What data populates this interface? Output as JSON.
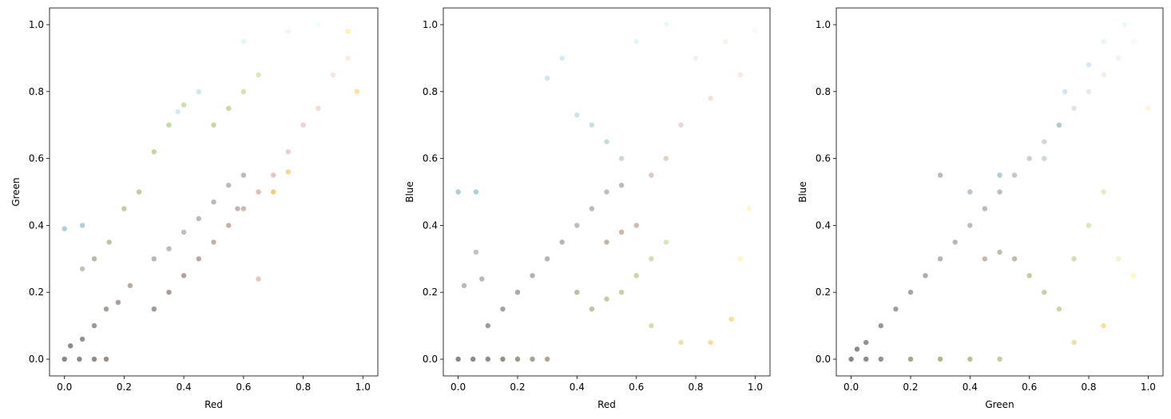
{
  "chart_data": [
    {
      "type": "scatter",
      "xlabel": "Red",
      "ylabel": "Green",
      "xlim": [
        -0.05,
        1.05
      ],
      "ylim": [
        -0.05,
        1.05
      ],
      "xticks": [
        "0.0",
        "0.2",
        "0.4",
        "0.6",
        "0.8",
        "1.0"
      ],
      "yticks": [
        "0.0",
        "0.2",
        "0.4",
        "0.6",
        "0.8",
        "1.0"
      ],
      "grid": false,
      "points": [
        {
          "x": 0.0,
          "y": 0.0,
          "color": "#1a0f0a"
        },
        {
          "x": 0.05,
          "y": 0.0,
          "color": "#24140c"
        },
        {
          "x": 0.1,
          "y": 0.0,
          "color": "#2b1410"
        },
        {
          "x": 0.14,
          "y": 0.0,
          "color": "#3a1c14"
        },
        {
          "x": 0.02,
          "y": 0.04,
          "color": "#181818"
        },
        {
          "x": 0.06,
          "y": 0.06,
          "color": "#2a2a24"
        },
        {
          "x": 0.1,
          "y": 0.1,
          "color": "#3a3530"
        },
        {
          "x": 0.14,
          "y": 0.15,
          "color": "#4a4438"
        },
        {
          "x": 0.18,
          "y": 0.17,
          "color": "#55443c"
        },
        {
          "x": 0.22,
          "y": 0.22,
          "color": "#6a5a50"
        },
        {
          "x": 0.0,
          "y": 0.39,
          "color": "#5aa0b0"
        },
        {
          "x": 0.06,
          "y": 0.4,
          "color": "#5aa0b0"
        },
        {
          "x": 0.06,
          "y": 0.27,
          "color": "#7c8c70"
        },
        {
          "x": 0.1,
          "y": 0.3,
          "color": "#6a7a50"
        },
        {
          "x": 0.15,
          "y": 0.35,
          "color": "#7a9040"
        },
        {
          "x": 0.2,
          "y": 0.45,
          "color": "#80a040"
        },
        {
          "x": 0.25,
          "y": 0.5,
          "color": "#7ca038"
        },
        {
          "x": 0.3,
          "y": 0.62,
          "color": "#8ab040"
        },
        {
          "x": 0.35,
          "y": 0.7,
          "color": "#8ab848"
        },
        {
          "x": 0.4,
          "y": 0.76,
          "color": "#9ac060"
        },
        {
          "x": 0.45,
          "y": 0.8,
          "color": "#a0d0e0"
        },
        {
          "x": 0.38,
          "y": 0.74,
          "color": "#a8d8f0"
        },
        {
          "x": 0.5,
          "y": 0.7,
          "color": "#8ab040"
        },
        {
          "x": 0.55,
          "y": 0.75,
          "color": "#90b848"
        },
        {
          "x": 0.6,
          "y": 0.8,
          "color": "#a0c860"
        },
        {
          "x": 0.65,
          "y": 0.85,
          "color": "#b0d870"
        },
        {
          "x": 0.6,
          "y": 0.95,
          "color": "#c8eef8"
        },
        {
          "x": 0.75,
          "y": 0.98,
          "color": "#d8f4f8"
        },
        {
          "x": 0.85,
          "y": 1.0,
          "color": "#e0f8fa"
        },
        {
          "x": 0.95,
          "y": 0.98,
          "color": "#ffe860"
        },
        {
          "x": 0.95,
          "y": 0.9,
          "color": "#f8d8d0"
        },
        {
          "x": 0.98,
          "y": 0.8,
          "color": "#f8c838"
        },
        {
          "x": 0.9,
          "y": 0.85,
          "color": "#f0d0c8"
        },
        {
          "x": 0.85,
          "y": 0.75,
          "color": "#e8b8b0"
        },
        {
          "x": 0.8,
          "y": 0.7,
          "color": "#d8a8a0"
        },
        {
          "x": 0.75,
          "y": 0.62,
          "color": "#d0a098"
        },
        {
          "x": 0.7,
          "y": 0.55,
          "color": "#c89088"
        },
        {
          "x": 0.65,
          "y": 0.5,
          "color": "#b88078"
        },
        {
          "x": 0.6,
          "y": 0.45,
          "color": "#a87068"
        },
        {
          "x": 0.55,
          "y": 0.4,
          "color": "#985e58"
        },
        {
          "x": 0.5,
          "y": 0.35,
          "color": "#886050"
        },
        {
          "x": 0.45,
          "y": 0.3,
          "color": "#7a5048"
        },
        {
          "x": 0.4,
          "y": 0.25,
          "color": "#6a4038"
        },
        {
          "x": 0.35,
          "y": 0.2,
          "color": "#5a3830"
        },
        {
          "x": 0.3,
          "y": 0.15,
          "color": "#4a2e28"
        },
        {
          "x": 0.65,
          "y": 0.24,
          "color": "#d88880"
        },
        {
          "x": 0.7,
          "y": 0.5,
          "color": "#e0a000"
        },
        {
          "x": 0.75,
          "y": 0.56,
          "color": "#e8b020"
        },
        {
          "x": 0.3,
          "y": 0.3,
          "color": "#707068"
        },
        {
          "x": 0.35,
          "y": 0.33,
          "color": "#787870"
        },
        {
          "x": 0.4,
          "y": 0.38,
          "color": "#808078"
        },
        {
          "x": 0.45,
          "y": 0.42,
          "color": "#787868"
        },
        {
          "x": 0.5,
          "y": 0.47,
          "color": "#7a7868"
        },
        {
          "x": 0.55,
          "y": 0.52,
          "color": "#7a7a6a"
        },
        {
          "x": 0.6,
          "y": 0.55,
          "color": "#787a6a"
        },
        {
          "x": 0.58,
          "y": 0.45,
          "color": "#8a6860"
        }
      ]
    },
    {
      "type": "scatter",
      "xlabel": "Red",
      "ylabel": "Blue",
      "xlim": [
        -0.05,
        1.05
      ],
      "ylim": [
        -0.05,
        1.05
      ],
      "xticks": [
        "0.0",
        "0.2",
        "0.4",
        "0.6",
        "0.8",
        "1.0"
      ],
      "yticks": [
        "0.0",
        "0.2",
        "0.4",
        "0.6",
        "0.8",
        "1.0"
      ],
      "grid": false,
      "points": [
        {
          "x": 0.0,
          "y": 0.0,
          "color": "#101010"
        },
        {
          "x": 0.05,
          "y": 0.0,
          "color": "#181410"
        },
        {
          "x": 0.1,
          "y": 0.0,
          "color": "#221a10"
        },
        {
          "x": 0.15,
          "y": 0.0,
          "color": "#2a2410"
        },
        {
          "x": 0.2,
          "y": 0.0,
          "color": "#3a3410"
        },
        {
          "x": 0.25,
          "y": 0.0,
          "color": "#4a4414"
        },
        {
          "x": 0.3,
          "y": 0.0,
          "color": "#5a5418"
        },
        {
          "x": 0.0,
          "y": 0.5,
          "color": "#5aa0b0"
        },
        {
          "x": 0.06,
          "y": 0.5,
          "color": "#5aa0b0"
        },
        {
          "x": 0.06,
          "y": 0.32,
          "color": "#7a8a88"
        },
        {
          "x": 0.08,
          "y": 0.24,
          "color": "#6a7a70"
        },
        {
          "x": 0.02,
          "y": 0.22,
          "color": "#687880"
        },
        {
          "x": 0.1,
          "y": 0.1,
          "color": "#3a3838"
        },
        {
          "x": 0.15,
          "y": 0.15,
          "color": "#4a4440"
        },
        {
          "x": 0.2,
          "y": 0.2,
          "color": "#5a5048"
        },
        {
          "x": 0.25,
          "y": 0.25,
          "color": "#6a6058"
        },
        {
          "x": 0.3,
          "y": 0.3,
          "color": "#6a6860"
        },
        {
          "x": 0.35,
          "y": 0.35,
          "color": "#707068"
        },
        {
          "x": 0.4,
          "y": 0.4,
          "color": "#787870"
        },
        {
          "x": 0.45,
          "y": 0.45,
          "color": "#7a7a70"
        },
        {
          "x": 0.5,
          "y": 0.5,
          "color": "#808078"
        },
        {
          "x": 0.55,
          "y": 0.52,
          "color": "#787870"
        },
        {
          "x": 0.5,
          "y": 0.35,
          "color": "#8a6858"
        },
        {
          "x": 0.55,
          "y": 0.38,
          "color": "#907060"
        },
        {
          "x": 0.6,
          "y": 0.4,
          "color": "#987868"
        },
        {
          "x": 0.4,
          "y": 0.2,
          "color": "#708040"
        },
        {
          "x": 0.45,
          "y": 0.15,
          "color": "#789040"
        },
        {
          "x": 0.5,
          "y": 0.18,
          "color": "#80a040"
        },
        {
          "x": 0.55,
          "y": 0.2,
          "color": "#88a848"
        },
        {
          "x": 0.6,
          "y": 0.25,
          "color": "#90b050"
        },
        {
          "x": 0.65,
          "y": 0.3,
          "color": "#a0c060"
        },
        {
          "x": 0.7,
          "y": 0.35,
          "color": "#b0d070"
        },
        {
          "x": 0.65,
          "y": 0.1,
          "color": "#b0c060"
        },
        {
          "x": 0.75,
          "y": 0.05,
          "color": "#e0c060"
        },
        {
          "x": 0.85,
          "y": 0.05,
          "color": "#f0c040"
        },
        {
          "x": 0.92,
          "y": 0.12,
          "color": "#f0c020"
        },
        {
          "x": 0.95,
          "y": 0.3,
          "color": "#fff080"
        },
        {
          "x": 0.98,
          "y": 0.45,
          "color": "#fff090"
        },
        {
          "x": 0.3,
          "y": 0.84,
          "color": "#a0d0e0"
        },
        {
          "x": 0.35,
          "y": 0.9,
          "color": "#a8d8f0"
        },
        {
          "x": 0.4,
          "y": 0.73,
          "color": "#98c8d8"
        },
        {
          "x": 0.45,
          "y": 0.7,
          "color": "#90c0c8"
        },
        {
          "x": 0.5,
          "y": 0.65,
          "color": "#88b8b8"
        },
        {
          "x": 0.55,
          "y": 0.6,
          "color": "#98b8a8"
        },
        {
          "x": 0.6,
          "y": 0.95,
          "color": "#c8eef8"
        },
        {
          "x": 0.7,
          "y": 1.0,
          "color": "#d8f4f8"
        },
        {
          "x": 0.8,
          "y": 0.9,
          "color": "#f0e0d8"
        },
        {
          "x": 0.9,
          "y": 0.95,
          "color": "#f8e4dc"
        },
        {
          "x": 1.0,
          "y": 0.98,
          "color": "#fff0e8"
        },
        {
          "x": 0.95,
          "y": 0.85,
          "color": "#f8d0c0"
        },
        {
          "x": 0.85,
          "y": 0.78,
          "color": "#e8c0b8"
        },
        {
          "x": 0.75,
          "y": 0.7,
          "color": "#d8b0a8"
        },
        {
          "x": 0.7,
          "y": 0.6,
          "color": "#c8a098"
        },
        {
          "x": 0.65,
          "y": 0.55,
          "color": "#b89088"
        }
      ]
    },
    {
      "type": "scatter",
      "xlabel": "Green",
      "ylabel": "Blue",
      "xlim": [
        -0.05,
        1.05
      ],
      "ylim": [
        -0.05,
        1.05
      ],
      "xticks": [
        "0.0",
        "0.2",
        "0.4",
        "0.6",
        "0.8",
        "1.0"
      ],
      "yticks": [
        "0.0",
        "0.2",
        "0.4",
        "0.6",
        "0.8",
        "1.0"
      ],
      "grid": false,
      "points": [
        {
          "x": 0.0,
          "y": 0.0,
          "color": "#101010"
        },
        {
          "x": 0.05,
          "y": 0.0,
          "color": "#201410"
        },
        {
          "x": 0.1,
          "y": 0.0,
          "color": "#302010"
        },
        {
          "x": 0.2,
          "y": 0.0,
          "color": "#505010"
        },
        {
          "x": 0.3,
          "y": 0.0,
          "color": "#607020"
        },
        {
          "x": 0.4,
          "y": 0.0,
          "color": "#708030"
        },
        {
          "x": 0.5,
          "y": 0.0,
          "color": "#80a040"
        },
        {
          "x": 0.02,
          "y": 0.03,
          "color": "#181818"
        },
        {
          "x": 0.05,
          "y": 0.05,
          "color": "#282828"
        },
        {
          "x": 0.1,
          "y": 0.1,
          "color": "#3a3030"
        },
        {
          "x": 0.15,
          "y": 0.15,
          "color": "#4a3a38"
        },
        {
          "x": 0.2,
          "y": 0.2,
          "color": "#5a4840"
        },
        {
          "x": 0.25,
          "y": 0.25,
          "color": "#6a5850"
        },
        {
          "x": 0.3,
          "y": 0.3,
          "color": "#6a6a62"
        },
        {
          "x": 0.35,
          "y": 0.35,
          "color": "#707068"
        },
        {
          "x": 0.4,
          "y": 0.4,
          "color": "#787870"
        },
        {
          "x": 0.45,
          "y": 0.45,
          "color": "#7a7a70"
        },
        {
          "x": 0.5,
          "y": 0.5,
          "color": "#808078"
        },
        {
          "x": 0.55,
          "y": 0.55,
          "color": "#909088"
        },
        {
          "x": 0.6,
          "y": 0.6,
          "color": "#a0a098"
        },
        {
          "x": 0.65,
          "y": 0.65,
          "color": "#b0b0a8"
        },
        {
          "x": 0.7,
          "y": 0.7,
          "color": "#c0c0b8"
        },
        {
          "x": 0.75,
          "y": 0.75,
          "color": "#d0c8c0"
        },
        {
          "x": 0.8,
          "y": 0.8,
          "color": "#e0d0c8"
        },
        {
          "x": 0.85,
          "y": 0.85,
          "color": "#f0d8d0"
        },
        {
          "x": 0.9,
          "y": 0.9,
          "color": "#f8e0d8"
        },
        {
          "x": 0.95,
          "y": 0.95,
          "color": "#fff0e8"
        },
        {
          "x": 0.45,
          "y": 0.3,
          "color": "#8a7058"
        },
        {
          "x": 0.5,
          "y": 0.32,
          "color": "#8a7860"
        },
        {
          "x": 0.55,
          "y": 0.3,
          "color": "#887858"
        },
        {
          "x": 0.6,
          "y": 0.25,
          "color": "#80a040"
        },
        {
          "x": 0.65,
          "y": 0.2,
          "color": "#88a848"
        },
        {
          "x": 0.7,
          "y": 0.15,
          "color": "#90b050"
        },
        {
          "x": 0.75,
          "y": 0.3,
          "color": "#a0c060"
        },
        {
          "x": 0.8,
          "y": 0.4,
          "color": "#b0d070"
        },
        {
          "x": 0.85,
          "y": 0.5,
          "color": "#c0e080"
        },
        {
          "x": 0.9,
          "y": 0.3,
          "color": "#e0f090"
        },
        {
          "x": 0.95,
          "y": 0.25,
          "color": "#fff080"
        },
        {
          "x": 0.85,
          "y": 0.1,
          "color": "#f0c040"
        },
        {
          "x": 0.75,
          "y": 0.05,
          "color": "#e0c060"
        },
        {
          "x": 1.0,
          "y": 0.75,
          "color": "#f8f0a0"
        },
        {
          "x": 0.3,
          "y": 0.55,
          "color": "#887068"
        },
        {
          "x": 0.4,
          "y": 0.5,
          "color": "#7890a0"
        },
        {
          "x": 0.5,
          "y": 0.55,
          "color": "#5aa0b0"
        },
        {
          "x": 0.72,
          "y": 0.8,
          "color": "#a0d0e0"
        },
        {
          "x": 0.8,
          "y": 0.88,
          "color": "#a8d8f0"
        },
        {
          "x": 0.85,
          "y": 0.95,
          "color": "#c8eef8"
        },
        {
          "x": 0.92,
          "y": 1.0,
          "color": "#d8f4f8"
        },
        {
          "x": 0.7,
          "y": 0.7,
          "color": "#88b8b8"
        },
        {
          "x": 0.65,
          "y": 0.6,
          "color": "#98b8a8"
        }
      ]
    }
  ]
}
